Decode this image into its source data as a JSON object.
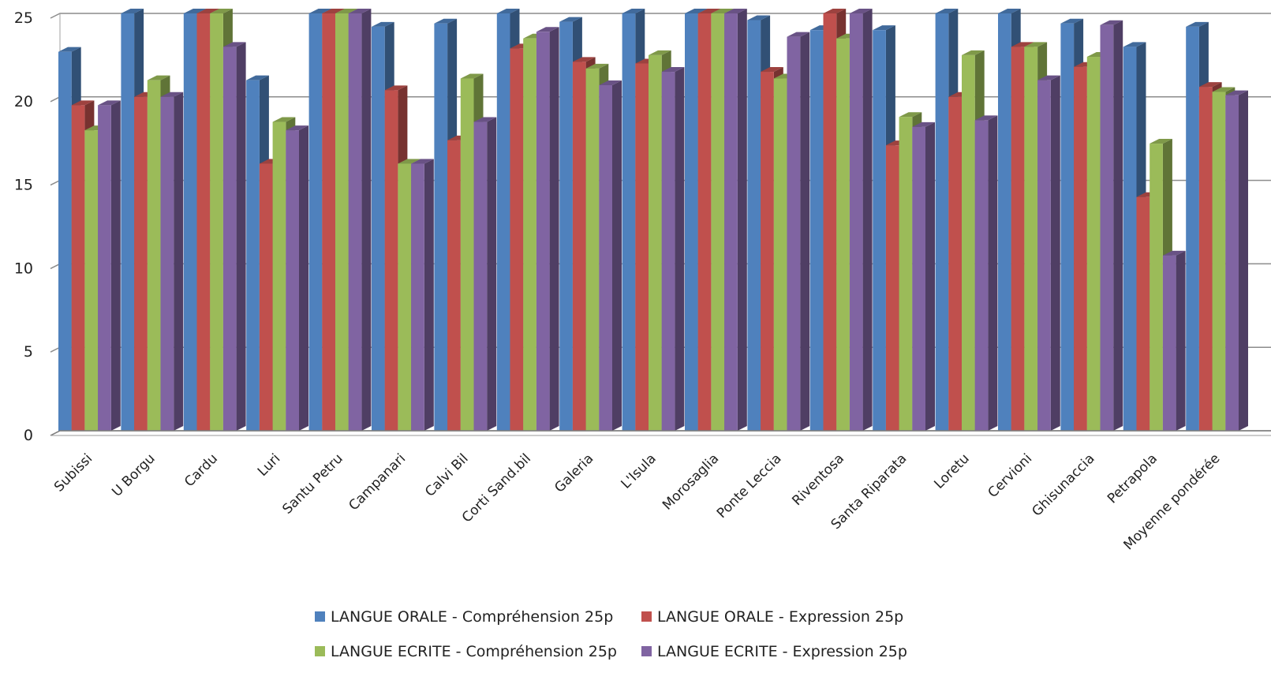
{
  "chart_data": {
    "type": "bar",
    "variant": "3d-clustered-column",
    "title": "",
    "xlabel": "",
    "ylabel": "",
    "ylim": [
      0,
      25
    ],
    "yticks": [
      0,
      5,
      10,
      15,
      20,
      25
    ],
    "grid": true,
    "legend_position": "bottom",
    "categories": [
      "Subissi",
      "U Borgu",
      "Cardu",
      "Luri",
      "Santu Petru",
      "Campanari",
      "Calvi Bil",
      "Corti Sand.bil",
      "Galeria",
      "L'Isula",
      "Morosaglia",
      "Ponte Leccia",
      "Riventosa",
      "Santa Riparata",
      "Loretu",
      "Cervioni",
      "Ghisunaccia",
      "Petrapola",
      "Moyenne pondérée"
    ],
    "series": [
      {
        "name": "LANGUE ORALE - Compréhension 25p",
        "color": "#4F81BD",
        "values": [
          22.7,
          25,
          25,
          21,
          25,
          24.2,
          24.4,
          25,
          24.5,
          25,
          25,
          24.6,
          24,
          24,
          25,
          25,
          24.4,
          23,
          24.2
        ]
      },
      {
        "name": "LANGUE ORALE - Expression 25p",
        "color": "#C0504D",
        "values": [
          19.5,
          20,
          25,
          16,
          25,
          20.4,
          17.4,
          22.9,
          22.1,
          22,
          25,
          21.5,
          25,
          17.1,
          20,
          23,
          21.8,
          14,
          20.6
        ]
      },
      {
        "name": "LANGUE ECRITE - Compréhension 25p",
        "color": "#9BBB59",
        "values": [
          18,
          21,
          25,
          18.5,
          25,
          16,
          21.1,
          23.5,
          21.7,
          22.5,
          25,
          21.1,
          23.5,
          18.8,
          22.5,
          23,
          22.4,
          17.2,
          20.3
        ]
      },
      {
        "name": "LANGUE ECRITE - Expression 25p",
        "color": "#8064A2",
        "values": [
          19.5,
          20,
          23,
          18,
          25,
          16,
          18.5,
          23.9,
          20.7,
          21.5,
          25,
          23.6,
          25,
          18.2,
          18.6,
          21,
          24.3,
          10.5,
          20.1
        ]
      }
    ]
  }
}
